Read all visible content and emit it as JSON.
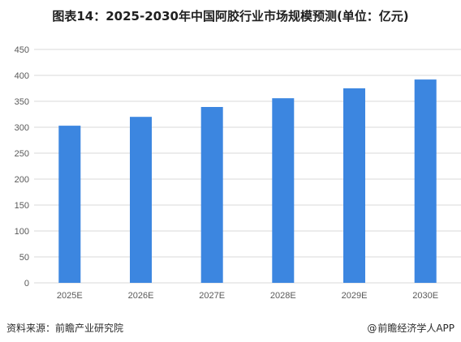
{
  "header": {
    "title": "图表14：2025-2030年中国阿胶行业市场规模预测(单位：亿元)"
  },
  "footer": {
    "source": "资料来源：前瞻产业研究院",
    "credit_symbol": "@",
    "credit": "前瞻经济学人APP"
  },
  "colors": {
    "bar": "#3c86e0",
    "grid": "#d9d9d9"
  },
  "chart_data": {
    "type": "bar",
    "categories": [
      "2025E",
      "2026E",
      "2027E",
      "2028E",
      "2029E",
      "2030E"
    ],
    "series": [
      {
        "values": [
          303,
          320,
          339,
          356,
          375,
          392
        ]
      }
    ],
    "xlabel": "",
    "ylabel": "",
    "ylim": [
      0,
      450
    ],
    "yticks": [
      0,
      50,
      100,
      150,
      200,
      250,
      300,
      350,
      400,
      450
    ],
    "grid": true,
    "legend": "none"
  }
}
